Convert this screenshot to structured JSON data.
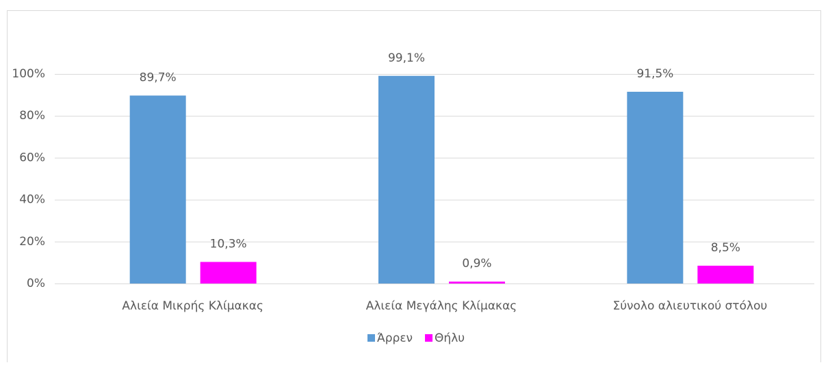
{
  "chart_data": {
    "type": "bar",
    "categories": [
      "Αλιεία Μικρής Κλίμακας",
      "Αλιεία Μεγάλης Κλίμακας",
      "Σύνολο αλιευτικού στόλου"
    ],
    "series": [
      {
        "name": "Άρρεν",
        "color": "#5b9bd5",
        "values": [
          89.7,
          99.1,
          91.5
        ],
        "value_labels": [
          "89,7%",
          "99,1%",
          "91,5%"
        ]
      },
      {
        "name": "Θήλυ",
        "color": "#ff00ff",
        "values": [
          10.3,
          0.9,
          8.5
        ],
        "value_labels": [
          "10,3%",
          "0,9%",
          "8,5%"
        ]
      }
    ],
    "ylim": [
      0,
      100
    ],
    "yticks": [
      {
        "value": 0,
        "label": "0%"
      },
      {
        "value": 20,
        "label": "20%"
      },
      {
        "value": 40,
        "label": "40%"
      },
      {
        "value": 60,
        "label": "60%"
      },
      {
        "value": 80,
        "label": "80%"
      },
      {
        "value": 100,
        "label": "100%"
      }
    ],
    "grid": true,
    "legend": "bottom"
  }
}
